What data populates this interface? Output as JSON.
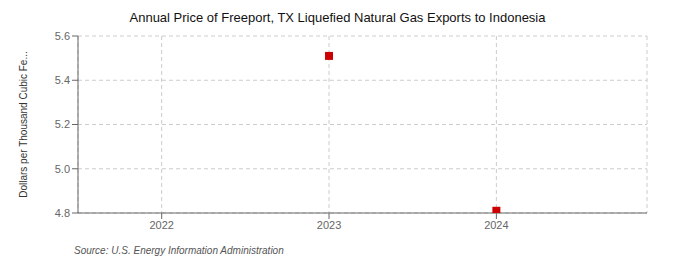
{
  "chart_data": {
    "type": "scatter",
    "title": "Annual Price of Freeport, TX Liquefied Natural Gas Exports to Indonesia",
    "ylabel": "Dollars per Thousand Cubic Fe...",
    "annotation": "Source: U.S. Energy Information Administration",
    "x": [
      2023,
      2024
    ],
    "values": [
      5.51,
      4.81
    ],
    "color": "#cc0000",
    "marker": "square",
    "xlim": [
      2021.5,
      2024.9
    ],
    "ylim": [
      4.8,
      5.6
    ],
    "xticks": [
      2022,
      2023,
      2024
    ],
    "yticks": [
      4.8,
      {
        "value": 5.0,
        "label": "5.0"
      },
      5.2,
      5.4,
      5.6
    ],
    "grid": true
  }
}
